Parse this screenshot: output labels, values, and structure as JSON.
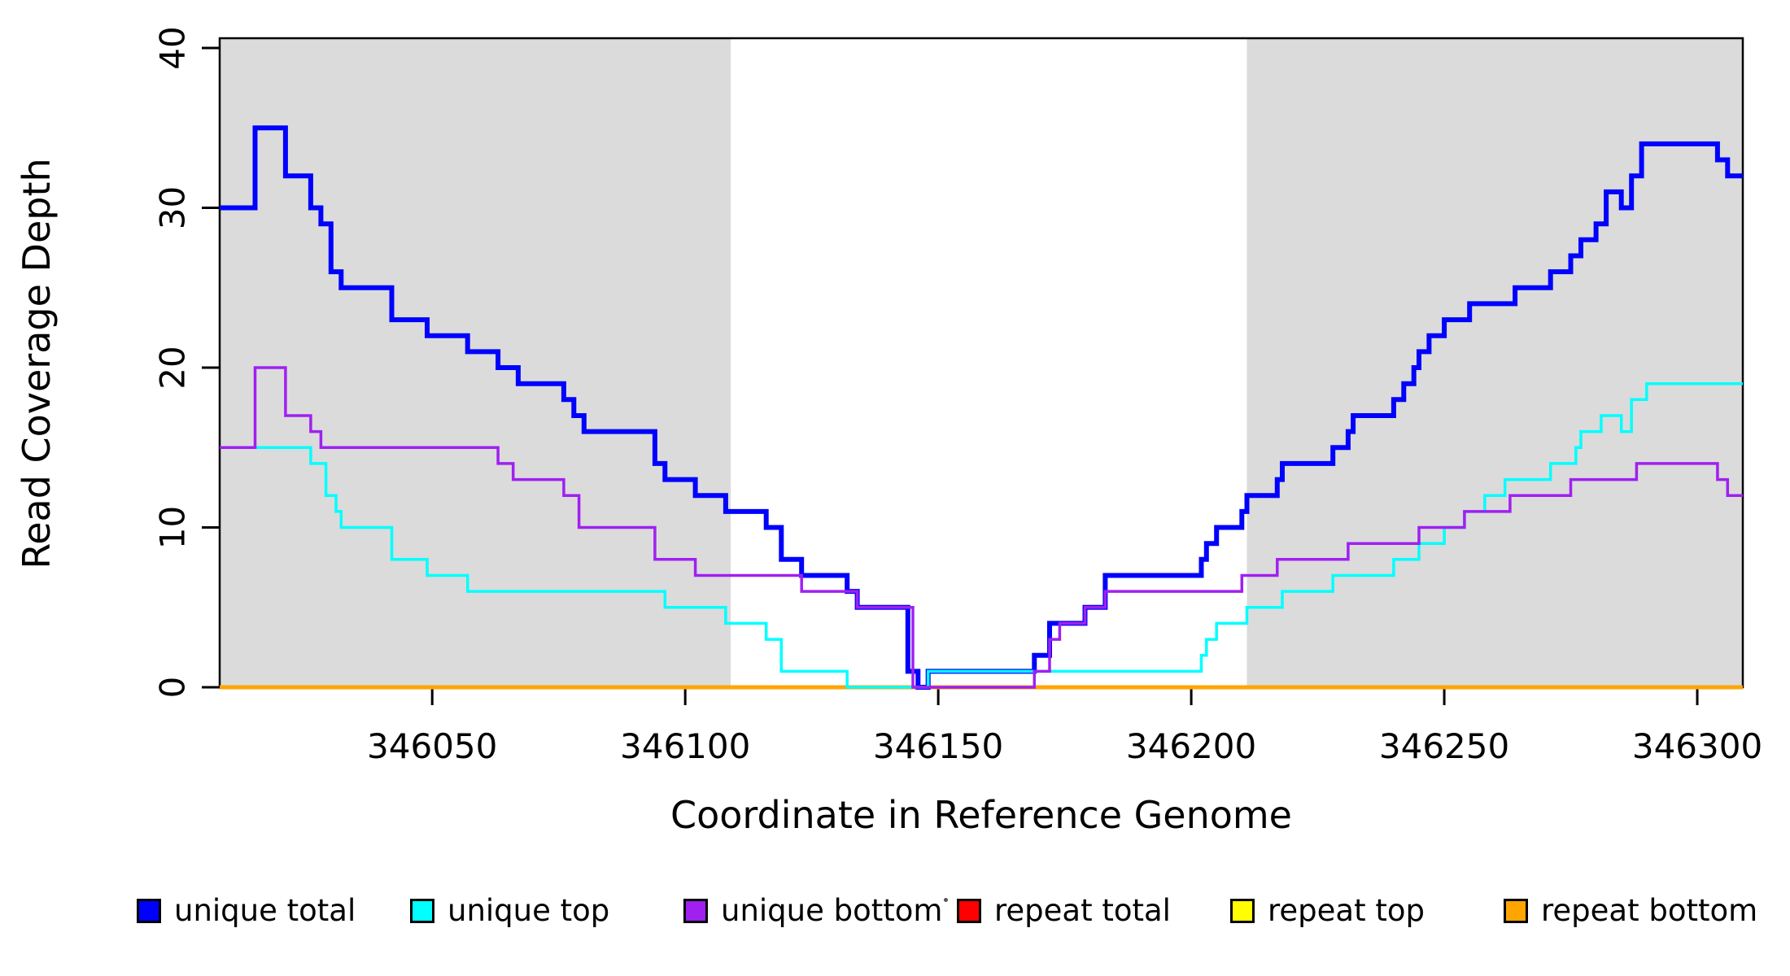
{
  "chart_data": {
    "type": "line",
    "subtype": "step-coverage-plot",
    "title": "",
    "xlabel": "Coordinate in Reference Genome",
    "ylabel": "Read Coverage Depth",
    "xlim": [
      346008,
      346309
    ],
    "ylim": [
      0,
      40
    ],
    "x_ticks": [
      346050,
      346100,
      346150,
      346200,
      346250,
      346300
    ],
    "y_ticks": [
      0,
      10,
      20,
      30,
      40
    ],
    "grid": "off",
    "legend_position": "bottom",
    "background_color": "#FFFFFF",
    "shaded_region_color": "#DBDBDB",
    "shaded_regions": [
      {
        "x0": 346008,
        "x1": 346109
      },
      {
        "x0": 346211,
        "x1": 346309
      }
    ],
    "series": [
      {
        "name": "unique total",
        "color": "#0000FF",
        "lw": 6,
        "start": 30,
        "steps": [
          [
            346015,
            35
          ],
          [
            346021,
            32
          ],
          [
            346026,
            30
          ],
          [
            346028,
            29
          ],
          [
            346030,
            26
          ],
          [
            346032,
            25
          ],
          [
            346042,
            23
          ],
          [
            346049,
            22
          ],
          [
            346057,
            21
          ],
          [
            346063,
            20
          ],
          [
            346067,
            19
          ],
          [
            346076,
            18
          ],
          [
            346078,
            17
          ],
          [
            346080,
            16
          ],
          [
            346094,
            14
          ],
          [
            346096,
            13
          ],
          [
            346102,
            12
          ],
          [
            346108,
            11
          ],
          [
            346116,
            10
          ],
          [
            346119,
            8
          ],
          [
            346123,
            7
          ],
          [
            346132,
            6
          ],
          [
            346134,
            5
          ],
          [
            346144,
            1
          ],
          [
            346146,
            0
          ],
          [
            346148,
            1
          ],
          [
            346169,
            2
          ],
          [
            346172,
            4
          ],
          [
            346179,
            5
          ],
          [
            346183,
            7
          ],
          [
            346202,
            8
          ],
          [
            346203,
            9
          ],
          [
            346205,
            10
          ],
          [
            346210,
            11
          ],
          [
            346211,
            12
          ],
          [
            346217,
            13
          ],
          [
            346218,
            14
          ],
          [
            346228,
            15
          ],
          [
            346231,
            16
          ],
          [
            346232,
            17
          ],
          [
            346240,
            18
          ],
          [
            346242,
            19
          ],
          [
            346244,
            20
          ],
          [
            346245,
            21
          ],
          [
            346247,
            22
          ],
          [
            346250,
            23
          ],
          [
            346255,
            24
          ],
          [
            346264,
            25
          ],
          [
            346271,
            26
          ],
          [
            346275,
            27
          ],
          [
            346277,
            28
          ],
          [
            346280,
            29
          ],
          [
            346282,
            31
          ],
          [
            346285,
            30
          ],
          [
            346287,
            32
          ],
          [
            346289,
            34
          ],
          [
            346304,
            33
          ],
          [
            346306,
            32
          ]
        ]
      },
      {
        "name": "unique top",
        "color": "#00FFFF",
        "lw": 3.5,
        "start": 15,
        "steps": [
          [
            346026,
            14
          ],
          [
            346029,
            12
          ],
          [
            346031,
            11
          ],
          [
            346032,
            10
          ],
          [
            346042,
            8
          ],
          [
            346049,
            7
          ],
          [
            346057,
            6
          ],
          [
            346096,
            5
          ],
          [
            346108,
            4
          ],
          [
            346116,
            3
          ],
          [
            346119,
            1
          ],
          [
            346132,
            0
          ],
          [
            346148,
            1
          ],
          [
            346202,
            2
          ],
          [
            346203,
            3
          ],
          [
            346205,
            4
          ],
          [
            346211,
            5
          ],
          [
            346218,
            6
          ],
          [
            346228,
            7
          ],
          [
            346240,
            8
          ],
          [
            346245,
            9
          ],
          [
            346250,
            10
          ],
          [
            346254,
            11
          ],
          [
            346258,
            12
          ],
          [
            346262,
            13
          ],
          [
            346271,
            14
          ],
          [
            346276,
            15
          ],
          [
            346277,
            16
          ],
          [
            346281,
            17
          ],
          [
            346285,
            16
          ],
          [
            346287,
            18
          ],
          [
            346290,
            19
          ]
        ]
      },
      {
        "name": "unique bottom",
        "color": "#A020F0",
        "lw": 3.5,
        "start": 15,
        "steps": [
          [
            346015,
            20
          ],
          [
            346021,
            17
          ],
          [
            346026,
            16
          ],
          [
            346028,
            15
          ],
          [
            346063,
            14
          ],
          [
            346066,
            13
          ],
          [
            346076,
            12
          ],
          [
            346079,
            10
          ],
          [
            346094,
            8
          ],
          [
            346102,
            7
          ],
          [
            346123,
            6
          ],
          [
            346134,
            5
          ],
          [
            346145,
            0
          ],
          [
            346169,
            1
          ],
          [
            346172,
            3
          ],
          [
            346174,
            4
          ],
          [
            346179,
            5
          ],
          [
            346183,
            6
          ],
          [
            346210,
            7
          ],
          [
            346217,
            8
          ],
          [
            346231,
            9
          ],
          [
            346245,
            10
          ],
          [
            346254,
            11
          ],
          [
            346263,
            12
          ],
          [
            346275,
            13
          ],
          [
            346288,
            14
          ],
          [
            346304,
            13
          ],
          [
            346306,
            12
          ]
        ]
      },
      {
        "name": "repeat total",
        "color": "#FF0000",
        "lw": 3.5,
        "start": 0,
        "steps": []
      },
      {
        "name": "repeat top",
        "color": "#FFFF00",
        "lw": 3.5,
        "start": 0,
        "steps": []
      },
      {
        "name": "repeat bottom",
        "color": "#FFA500",
        "lw": 5,
        "start": 0,
        "steps": []
      }
    ],
    "legend": [
      {
        "label": "unique total",
        "color": "#0000FF"
      },
      {
        "label": "unique top",
        "color": "#00FFFF"
      },
      {
        "label": "unique bottom",
        "color": "#A020F0"
      },
      {
        "label": "repeat total",
        "color": "#FF0000"
      },
      {
        "label": "repeat top",
        "color": "#FFFF00"
      },
      {
        "label": "repeat bottom",
        "color": "#FFA500"
      }
    ]
  }
}
